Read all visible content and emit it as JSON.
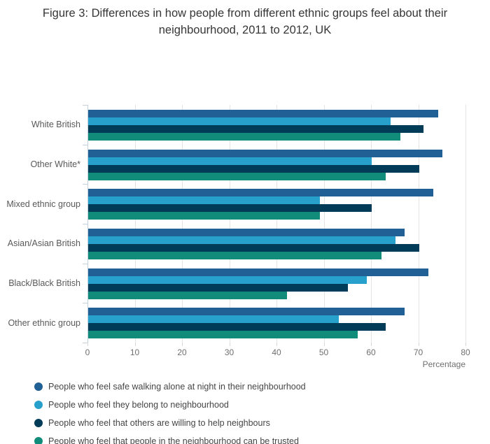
{
  "title": "Figure 3: Differences in how people from different ethnic groups feel about their neighbourhood, 2011 to 2012, UK",
  "chart_data": {
    "type": "bar",
    "orientation": "horizontal",
    "title": "Figure 3: Differences in how people from different ethnic groups feel about their neighbourhood, 2011 to 2012, UK",
    "categories": [
      "White British",
      "Other White*",
      "Mixed ethnic group",
      "Asian/Asian British",
      "Black/Black British",
      "Other ethnic group"
    ],
    "series": [
      {
        "name": "People who feel safe walking alone at night in their neighbourhood",
        "color": "#206095",
        "values": [
          74,
          75,
          73,
          67,
          72,
          67
        ]
      },
      {
        "name": "People who feel they belong to neighbourhood",
        "color": "#27A0CC",
        "values": [
          64,
          60,
          49,
          65,
          59,
          53
        ]
      },
      {
        "name": "People who feel that others are willing to help neighbours",
        "color": "#003C57",
        "values": [
          71,
          70,
          60,
          70,
          55,
          63
        ]
      },
      {
        "name": "People who feel that people in the neighbourhood can be trusted",
        "color": "#118C7B",
        "values": [
          66,
          63,
          49,
          62,
          42,
          57
        ]
      }
    ],
    "xlabel": "Percentage",
    "ylabel": "",
    "xlim": [
      0,
      80
    ],
    "xticks": [
      0,
      10,
      20,
      30,
      40,
      50,
      60,
      70,
      80
    ],
    "grid": true,
    "legend_position": "bottom-left"
  }
}
